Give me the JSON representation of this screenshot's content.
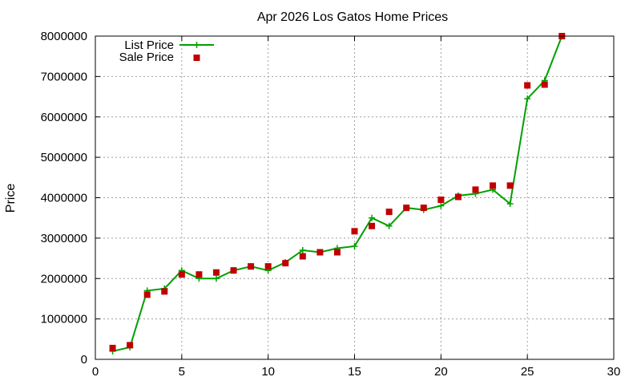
{
  "chart_data": {
    "type": "line",
    "title": "Apr 2026 Los Gatos Home Prices",
    "xlabel": "",
    "ylabel": "Price",
    "xlim": [
      0,
      30
    ],
    "ylim": [
      0,
      8000000
    ],
    "x_ticks": [
      0,
      5,
      10,
      15,
      20,
      25,
      30
    ],
    "y_ticks": [
      0,
      1000000,
      2000000,
      3000000,
      4000000,
      5000000,
      6000000,
      7000000,
      8000000
    ],
    "x_tick_labels": [
      "0",
      "5",
      "10",
      "15",
      "20",
      "25",
      "30"
    ],
    "y_tick_labels": [
      "0",
      "1000000",
      "2000000",
      "3000000",
      "4000000",
      "5000000",
      "6000000",
      "7000000",
      "8000000"
    ],
    "grid": true,
    "legend_position": "top-left",
    "x": [
      1,
      2,
      3,
      4,
      5,
      6,
      7,
      8,
      9,
      10,
      11,
      12,
      13,
      14,
      15,
      16,
      17,
      18,
      19,
      20,
      21,
      22,
      23,
      24,
      25,
      26,
      27
    ],
    "series": [
      {
        "name": "List Price",
        "style": "line+cross",
        "color": "#00a000",
        "values": [
          200000,
          300000,
          1700000,
          1750000,
          2200000,
          2000000,
          2000000,
          2200000,
          2300000,
          2200000,
          2400000,
          2700000,
          2650000,
          2750000,
          2800000,
          3500000,
          3300000,
          3750000,
          3700000,
          3800000,
          4050000,
          4100000,
          4200000,
          3850000,
          6450000,
          6900000,
          8000000
        ]
      },
      {
        "name": "Sale Price",
        "style": "square",
        "color": "#c00000",
        "values": [
          280000,
          350000,
          1600000,
          1680000,
          2100000,
          2100000,
          2150000,
          2200000,
          2300000,
          2300000,
          2380000,
          2550000,
          2650000,
          2650000,
          3170000,
          3300000,
          3650000,
          3750000,
          3750000,
          3950000,
          4020000,
          4200000,
          4300000,
          4300000,
          6780000,
          6800000,
          8000000
        ]
      }
    ]
  }
}
